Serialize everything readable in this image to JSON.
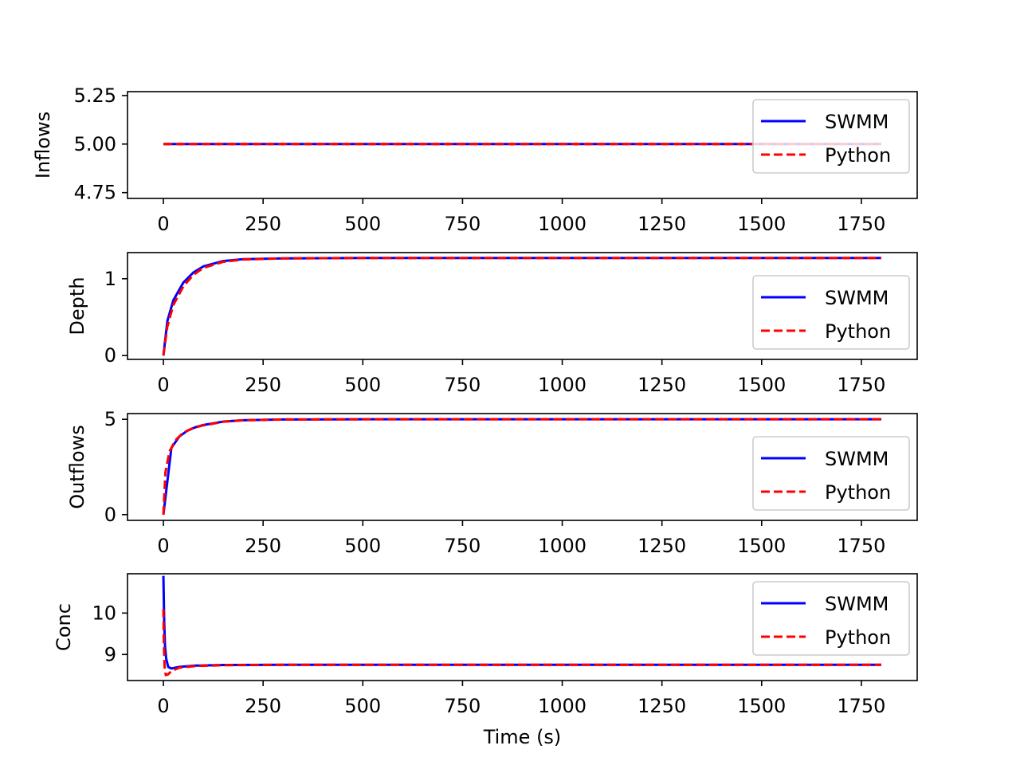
{
  "chart_data": [
    {
      "type": "line",
      "title": "",
      "xlabel": "",
      "ylabel": "Inflows",
      "xlim": [
        -90,
        1890
      ],
      "ylim": [
        4.72,
        5.27
      ],
      "xticks": [
        0,
        250,
        500,
        750,
        1000,
        1250,
        1500,
        1750
      ],
      "xtick_labels": [
        "0",
        "250",
        "500",
        "750",
        "1000",
        "1250",
        "1500",
        "1750"
      ],
      "yticks": [
        4.75,
        5.0,
        5.25
      ],
      "ytick_labels": [
        "4.75",
        "5.00",
        "5.25"
      ],
      "legend_position": "upper right",
      "series": [
        {
          "name": "SWMM",
          "color": "#0000ff",
          "style": "solid",
          "points": [
            [
              0,
              5.0
            ],
            [
              1800,
              5.0
            ]
          ]
        },
        {
          "name": "Python",
          "color": "#ff0000",
          "style": "dashed",
          "points": [
            [
              0,
              5.0
            ],
            [
              1800,
              5.0
            ]
          ]
        }
      ]
    },
    {
      "type": "line",
      "title": "",
      "xlabel": "",
      "ylabel": "Depth",
      "xlim": [
        -90,
        1890
      ],
      "ylim": [
        -0.05,
        1.34
      ],
      "xticks": [
        0,
        250,
        500,
        750,
        1000,
        1250,
        1500,
        1750
      ],
      "xtick_labels": [
        "0",
        "250",
        "500",
        "750",
        "1000",
        "1250",
        "1500",
        "1750"
      ],
      "yticks": [
        0,
        1
      ],
      "ytick_labels": [
        "0",
        "1"
      ],
      "legend_position": "right",
      "series": [
        {
          "name": "SWMM",
          "color": "#0000ff",
          "style": "solid",
          "points": [
            [
              0,
              0.0
            ],
            [
              10,
              0.45
            ],
            [
              25,
              0.72
            ],
            [
              50,
              0.95
            ],
            [
              75,
              1.08
            ],
            [
              100,
              1.16
            ],
            [
              150,
              1.23
            ],
            [
              200,
              1.255
            ],
            [
              300,
              1.265
            ],
            [
              500,
              1.27
            ],
            [
              1800,
              1.27
            ]
          ]
        },
        {
          "name": "Python",
          "color": "#ff0000",
          "style": "dashed",
          "points": [
            [
              0,
              0.0
            ],
            [
              10,
              0.38
            ],
            [
              25,
              0.66
            ],
            [
              50,
              0.9
            ],
            [
              75,
              1.05
            ],
            [
              100,
              1.14
            ],
            [
              150,
              1.22
            ],
            [
              200,
              1.25
            ],
            [
              300,
              1.265
            ],
            [
              500,
              1.27
            ],
            [
              1800,
              1.27
            ]
          ]
        }
      ]
    },
    {
      "type": "line",
      "title": "",
      "xlabel": "",
      "ylabel": "Outflows",
      "xlim": [
        -90,
        1890
      ],
      "ylim": [
        -0.3,
        5.3
      ],
      "xticks": [
        0,
        250,
        500,
        750,
        1000,
        1250,
        1500,
        1750
      ],
      "xtick_labels": [
        "0",
        "250",
        "500",
        "750",
        "1000",
        "1250",
        "1500",
        "1750"
      ],
      "yticks": [
        0,
        5
      ],
      "ytick_labels": [
        "0",
        "5"
      ],
      "legend_position": "right",
      "series": [
        {
          "name": "SWMM",
          "color": "#0000ff",
          "style": "solid",
          "points": [
            [
              0,
              0.0
            ],
            [
              20,
              3.5
            ],
            [
              40,
              4.1
            ],
            [
              60,
              4.4
            ],
            [
              80,
              4.58
            ],
            [
              100,
              4.7
            ],
            [
              150,
              4.88
            ],
            [
              200,
              4.95
            ],
            [
              300,
              4.99
            ],
            [
              500,
              5.0
            ],
            [
              1800,
              5.0
            ]
          ]
        },
        {
          "name": "Python",
          "color": "#ff0000",
          "style": "dashed",
          "points": [
            [
              0,
              0.0
            ],
            [
              5,
              2.2
            ],
            [
              15,
              3.3
            ],
            [
              30,
              3.9
            ],
            [
              50,
              4.3
            ],
            [
              75,
              4.55
            ],
            [
              100,
              4.68
            ],
            [
              150,
              4.87
            ],
            [
              200,
              4.95
            ],
            [
              300,
              4.99
            ],
            [
              500,
              5.0
            ],
            [
              1800,
              5.0
            ]
          ]
        }
      ]
    },
    {
      "type": "line",
      "title": "",
      "xlabel": "Time (s)",
      "ylabel": "Conc",
      "xlim": [
        -90,
        1890
      ],
      "ylim": [
        8.37,
        10.95
      ],
      "xticks": [
        0,
        250,
        500,
        750,
        1000,
        1250,
        1500,
        1750
      ],
      "xtick_labels": [
        "0",
        "250",
        "500",
        "750",
        "1000",
        "1250",
        "1500",
        "1750"
      ],
      "yticks": [
        9,
        10
      ],
      "ytick_labels": [
        "9",
        "10"
      ],
      "legend_position": "upper right",
      "series": [
        {
          "name": "SWMM",
          "color": "#0000ff",
          "style": "solid",
          "points": [
            [
              0,
              10.9
            ],
            [
              2,
              9.8
            ],
            [
              4,
              9.2
            ],
            [
              7,
              8.9
            ],
            [
              12,
              8.7
            ],
            [
              20,
              8.66
            ],
            [
              40,
              8.7
            ],
            [
              80,
              8.73
            ],
            [
              150,
              8.745
            ],
            [
              300,
              8.75
            ],
            [
              1800,
              8.75
            ]
          ]
        },
        {
          "name": "Python",
          "color": "#ff0000",
          "style": "dashed",
          "points": [
            [
              0,
              10.1
            ],
            [
              1,
              9.3
            ],
            [
              3,
              8.7
            ],
            [
              6,
              8.5
            ],
            [
              12,
              8.52
            ],
            [
              20,
              8.6
            ],
            [
              40,
              8.68
            ],
            [
              80,
              8.72
            ],
            [
              150,
              8.74
            ],
            [
              300,
              8.75
            ],
            [
              1800,
              8.75
            ]
          ]
        }
      ]
    }
  ]
}
